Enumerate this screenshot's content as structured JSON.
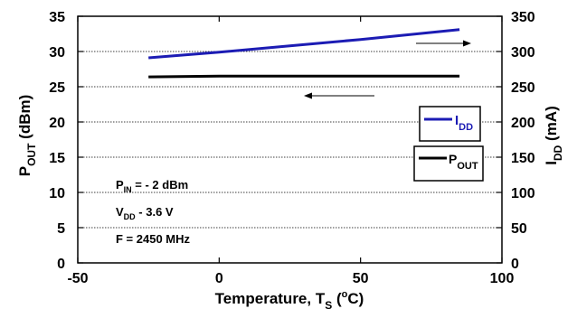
{
  "chart_data": {
    "type": "line",
    "xlabel": {
      "main": "Temperature, T",
      "sub": "S",
      "unit_open": " (",
      "sup": "o",
      "unit_close": "C)"
    },
    "ylabel_left": {
      "main": "P",
      "sub": "OUT",
      "unit": " (dBm)"
    },
    "ylabel_right": {
      "main": "I",
      "sub": "DD",
      "unit": " (mA)"
    },
    "xlim": [
      -50,
      100
    ],
    "ylim_left": [
      0,
      35
    ],
    "ylim_right": [
      0,
      350
    ],
    "x_ticks": [
      -50,
      0,
      50,
      100
    ],
    "y_left_ticks": [
      0,
      5,
      10,
      15,
      20,
      25,
      30,
      35
    ],
    "y_right_ticks": [
      0,
      50,
      100,
      150,
      200,
      250,
      300,
      350
    ],
    "grid": "horizontal dotted",
    "series": [
      {
        "name": "I",
        "name_sub": "DD",
        "axis": "right",
        "color": "#1c1cb4",
        "x": [
          -25,
          0,
          25,
          50,
          85
        ],
        "y": [
          291,
          299,
          308,
          317,
          331
        ]
      },
      {
        "name": "P",
        "name_sub": "OUT",
        "axis": "left",
        "color": "#000000",
        "x": [
          -25,
          0,
          25,
          50,
          85
        ],
        "y": [
          26.4,
          26.5,
          26.5,
          26.5,
          26.5
        ]
      }
    ],
    "annotations": [
      {
        "main": "P",
        "sub": "IN",
        "rest": " = - 2 dBm"
      },
      {
        "main": "V",
        "sub": "DD",
        "rest": " - 3.6 V"
      },
      {
        "main": "F = 2450 MHz",
        "sub": "",
        "rest": ""
      }
    ],
    "arrows": [
      {
        "direction": "right",
        "points_to": "right axis"
      },
      {
        "direction": "left",
        "points_to": "left axis"
      }
    ]
  }
}
